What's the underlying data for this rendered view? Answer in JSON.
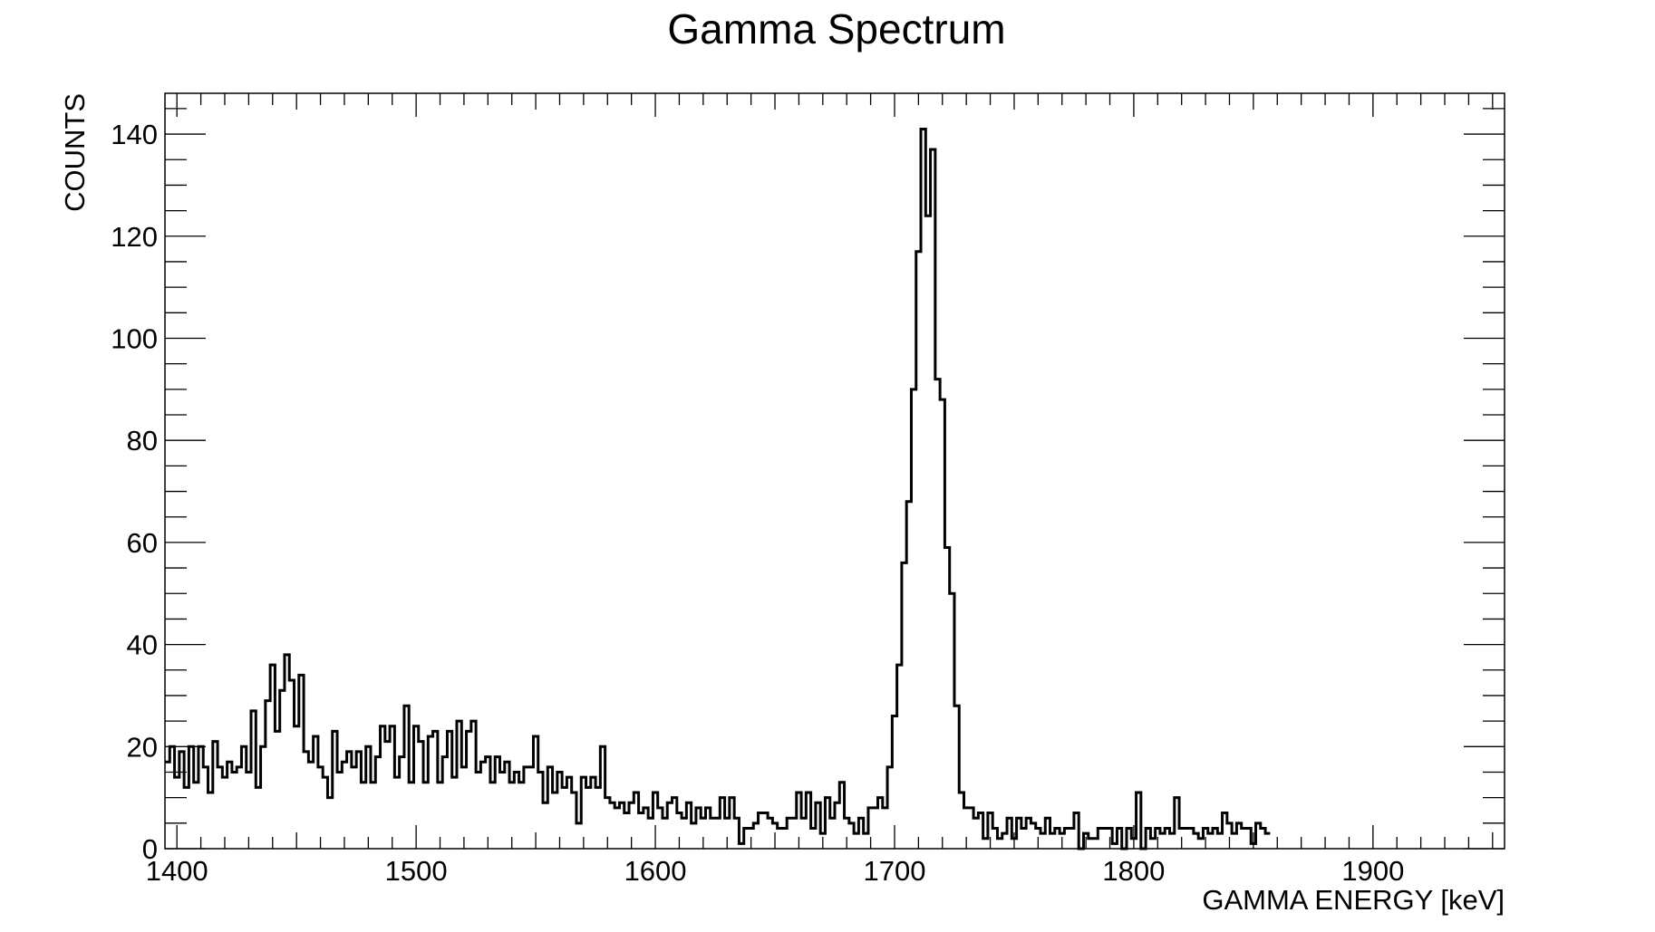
{
  "chart_data": {
    "type": "line",
    "style": "step-histogram",
    "title": "Gamma Spectrum",
    "xlabel": "GAMMA ENERGY [keV]",
    "ylabel": "COUNTS",
    "xlim": [
      1395,
      1955
    ],
    "ylim": [
      0,
      148
    ],
    "x_ticks": [
      1400,
      1500,
      1600,
      1700,
      1800,
      1900
    ],
    "y_ticks": [
      0,
      20,
      40,
      60,
      80,
      100,
      120,
      140
    ],
    "grid": false,
    "legend": "none",
    "bin_width": 2,
    "series": [
      {
        "line_color": "#000000",
        "x_start": 1395,
        "values": [
          17,
          20,
          14,
          19,
          12,
          20,
          13,
          20,
          16,
          11,
          21,
          16,
          14,
          17,
          15,
          16,
          20,
          15,
          27,
          12,
          20,
          29,
          36,
          23,
          31,
          38,
          33,
          24,
          34,
          19,
          17,
          22,
          16,
          14,
          10,
          23,
          15,
          17,
          19,
          16,
          19,
          13,
          20,
          13,
          18,
          24,
          21,
          24,
          14,
          18,
          28,
          13,
          24,
          21,
          13,
          22,
          23,
          13,
          18,
          23,
          14,
          25,
          16,
          23,
          25,
          15,
          17,
          18,
          13,
          18,
          15,
          17,
          13,
          15,
          13,
          16,
          16,
          22,
          15,
          9,
          16,
          11,
          15,
          12,
          14,
          11,
          5,
          14,
          12,
          14,
          12,
          20,
          10,
          9,
          8,
          9,
          7,
          9,
          11,
          7,
          8,
          6,
          11,
          8,
          6,
          9,
          10,
          7,
          6,
          9,
          5,
          8,
          6,
          8,
          6,
          6,
          10,
          6,
          10,
          6,
          1,
          4,
          4,
          5,
          7,
          7,
          6,
          5,
          4,
          4,
          6,
          6,
          11,
          6,
          11,
          4,
          9,
          3,
          10,
          6,
          9,
          13,
          6,
          5,
          3,
          6,
          3,
          8,
          8,
          10,
          8,
          16,
          26,
          36,
          56,
          68,
          90,
          117,
          141,
          124,
          137,
          92,
          88,
          59,
          50,
          28,
          11,
          8,
          8,
          6,
          7,
          2,
          7,
          4,
          2,
          3,
          6,
          2,
          6,
          4,
          6,
          5,
          4,
          3,
          6,
          3,
          4,
          3,
          4,
          4,
          7,
          0,
          3,
          2,
          2,
          4,
          4,
          4,
          1,
          4,
          0,
          4,
          2,
          11,
          0,
          4,
          2,
          4,
          3,
          4,
          3,
          10,
          4,
          4,
          4,
          3,
          2,
          4,
          3,
          4,
          3,
          7,
          5,
          3,
          5,
          4,
          4,
          1,
          5,
          4,
          3
        ]
      }
    ]
  }
}
